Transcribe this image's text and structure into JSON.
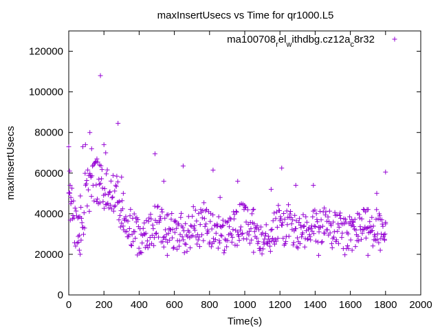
{
  "chart_data": {
    "type": "scatter",
    "title": "maxInsertUsecs vs Time for qr1000.L5",
    "xlabel": "Time(s)",
    "ylabel": "maxInsertUsecs",
    "xlim": [
      0,
      2000
    ],
    "ylim": [
      0,
      130000
    ],
    "x_ticks": [
      0,
      200,
      400,
      600,
      800,
      1000,
      1200,
      1400,
      1600,
      1800,
      2000
    ],
    "y_ticks": [
      0,
      20000,
      40000,
      60000,
      80000,
      100000,
      120000
    ],
    "grid": false,
    "legend_position": "top-right",
    "legend": {
      "parts": [
        {
          "text": "ma100708",
          "sub": false
        },
        {
          "text": "r",
          "sub": true
        },
        {
          "text": "el",
          "sub": false
        },
        {
          "text": "w",
          "sub": true
        },
        {
          "text": "ithdbg.cz12a",
          "sub": false
        },
        {
          "text": "c",
          "sub": true
        },
        {
          "text": "8r32",
          "sub": false
        }
      ]
    },
    "series": [
      {
        "color": "#9400d3",
        "marker": "plus",
        "x_range": [
          0,
          1800
        ],
        "x_step": 3,
        "segments": [
          {
            "x_end": 30,
            "y_mid": 44000,
            "y_spread": 9000
          },
          {
            "x_end": 60,
            "y_mid": 33000,
            "y_spread": 11000
          },
          {
            "x_end": 90,
            "y_mid": 38000,
            "y_spread": 16000
          },
          {
            "x_end": 130,
            "y_mid": 53000,
            "y_spread": 12000
          },
          {
            "x_end": 190,
            "y_mid": 56000,
            "y_spread": 11000
          },
          {
            "x_end": 240,
            "y_mid": 52000,
            "y_spread": 10000
          },
          {
            "x_end": 280,
            "y_mid": 50000,
            "y_spread": 9000
          },
          {
            "x_end": 320,
            "y_mid": 38000,
            "y_spread": 8000
          },
          {
            "x_end": 1800,
            "y_mid": 32500,
            "y_spread": 9500
          }
        ],
        "highlights": [
          {
            "x": 0,
            "y": 73000
          },
          {
            "x": 5,
            "y": 61000
          },
          {
            "x": 8,
            "y": 54000
          },
          {
            "x": 12,
            "y": 48000
          },
          {
            "x": 55,
            "y": 26000
          },
          {
            "x": 60,
            "y": 22000
          },
          {
            "x": 65,
            "y": 20000
          },
          {
            "x": 70,
            "y": 27000
          },
          {
            "x": 80,
            "y": 73000
          },
          {
            "x": 95,
            "y": 74000
          },
          {
            "x": 120,
            "y": 80000
          },
          {
            "x": 130,
            "y": 72000
          },
          {
            "x": 160,
            "y": 67000
          },
          {
            "x": 175,
            "y": 64000
          },
          {
            "x": 180,
            "y": 108000
          },
          {
            "x": 200,
            "y": 74000
          },
          {
            "x": 210,
            "y": 70000
          },
          {
            "x": 280,
            "y": 84500
          },
          {
            "x": 300,
            "y": 58000
          },
          {
            "x": 310,
            "y": 50000
          },
          {
            "x": 490,
            "y": 69500
          },
          {
            "x": 540,
            "y": 56000
          },
          {
            "x": 560,
            "y": 19500
          },
          {
            "x": 650,
            "y": 63500
          },
          {
            "x": 820,
            "y": 61500
          },
          {
            "x": 860,
            "y": 48000
          },
          {
            "x": 960,
            "y": 56000
          },
          {
            "x": 1050,
            "y": 21000
          },
          {
            "x": 1150,
            "y": 52000
          },
          {
            "x": 1210,
            "y": 62500
          },
          {
            "x": 1290,
            "y": 54000
          },
          {
            "x": 1390,
            "y": 54000
          },
          {
            "x": 1420,
            "y": 19500
          },
          {
            "x": 1610,
            "y": 22000
          },
          {
            "x": 1700,
            "y": 19500
          },
          {
            "x": 1750,
            "y": 50000
          },
          {
            "x": 1770,
            "y": 22000
          },
          {
            "x": 1800,
            "y": 60500
          },
          {
            "x": 1800,
            "y": 35000
          },
          {
            "x": 1795,
            "y": 27000
          }
        ]
      }
    ]
  }
}
